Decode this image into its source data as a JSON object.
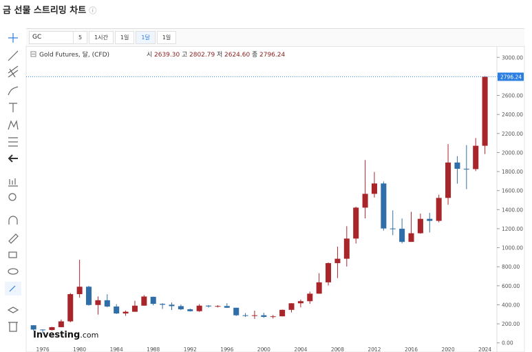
{
  "page_title": "금 선물 스트리밍 차트",
  "toolbar": {
    "symbol": "GC",
    "intervals": [
      "5",
      "1시간",
      "1일",
      "1달",
      "1일"
    ]
  },
  "legend": {
    "name": "Gold Futures, 달, (CFD)",
    "open_label": "시",
    "open": "2639.30",
    "high_label": "고",
    "high": "2802.79",
    "low_label": "저",
    "low": "2624.60",
    "close_label": "종",
    "close": "2796.24"
  },
  "logo": {
    "brand": "Investing",
    "domain": ".com"
  },
  "chart_data": {
    "type": "candlestick",
    "x": [
      1975,
      1976,
      1977,
      1978,
      1979,
      1980,
      1981,
      1982,
      1983,
      1984,
      1985,
      1986,
      1987,
      1988,
      1989,
      1990,
      1991,
      1992,
      1993,
      1994,
      1995,
      1996,
      1997,
      1998,
      1999,
      2000,
      2001,
      2002,
      2003,
      2004,
      2005,
      2006,
      2007,
      2008,
      2009,
      2010,
      2011,
      2012,
      2013,
      2014,
      2015,
      2016,
      2017,
      2018,
      2019,
      2020,
      2021,
      2022,
      2023,
      2024
    ],
    "open": [
      185,
      140,
      135,
      165,
      226,
      512,
      590,
      398,
      448,
      382,
      309,
      327,
      391,
      484,
      410,
      401,
      386,
      353,
      333,
      391,
      383,
      387,
      369,
      290,
      288,
      290,
      273,
      279,
      347,
      416,
      438,
      517,
      636,
      838,
      884,
      1096,
      1421,
      1566,
      1675,
      1202,
      1199,
      1061,
      1152,
      1303,
      1282,
      1523,
      1895,
      1829,
      1826,
      2071
    ],
    "high": [
      186,
      142,
      168,
      245,
      524,
      873,
      599,
      488,
      511,
      406,
      340,
      442,
      502,
      486,
      417,
      424,
      403,
      360,
      407,
      397,
      396,
      416,
      369,
      313,
      338,
      316,
      293,
      350,
      417,
      455,
      538,
      732,
      845,
      1011,
      1226,
      1431,
      1921,
      1796,
      1696,
      1392,
      1307,
      1377,
      1358,
      1366,
      1557,
      2089,
      1962,
      2078,
      2152,
      2802.79
    ],
    "low": [
      128,
      104,
      130,
      165,
      216,
      474,
      391,
      297,
      374,
      303,
      284,
      326,
      390,
      395,
      356,
      345,
      344,
      330,
      326,
      370,
      372,
      367,
      283,
      273,
      252,
      263,
      256,
      278,
      320,
      373,
      411,
      517,
      603,
      681,
      802,
      1044,
      1308,
      1527,
      1180,
      1131,
      1046,
      1061,
      1147,
      1160,
      1266,
      1451,
      1673,
      1615,
      1805,
      1984
    ],
    "close": [
      140,
      135,
      165,
      226,
      512,
      590,
      398,
      448,
      382,
      309,
      327,
      391,
      487,
      410,
      401,
      386,
      353,
      333,
      391,
      383,
      387,
      369,
      290,
      288,
      290,
      273,
      279,
      347,
      416,
      438,
      517,
      636,
      838,
      884,
      1096,
      1421,
      1566,
      1675,
      1202,
      1199,
      1061,
      1152,
      1303,
      1282,
      1523,
      1895,
      1829,
      1826,
      2071,
      2796.24
    ],
    "up_color": "#a8262a",
    "down_color": "#2f6ea8",
    "xlim": [
      1974.2,
      2025.3
    ],
    "xticks": [
      1976,
      1980,
      1984,
      1988,
      1992,
      1996,
      2000,
      2004,
      2008,
      2012,
      2016,
      2020,
      2024
    ],
    "ylim": [
      -96,
      3125
    ],
    "yticks": [
      {
        "value": 0,
        "label": "0.00"
      },
      {
        "value": 200,
        "label": "200.00"
      },
      {
        "value": 400,
        "label": "400.00"
      },
      {
        "value": 600,
        "label": "600.00"
      },
      {
        "value": 800,
        "label": "800.00"
      },
      {
        "value": 1000,
        "label": "1000.00"
      },
      {
        "value": 1200,
        "label": "1200.00"
      },
      {
        "value": 1400,
        "label": "1400.00"
      },
      {
        "value": 1600,
        "label": "1600.00"
      },
      {
        "value": 1800,
        "label": "1800.00"
      },
      {
        "value": 2000,
        "label": "2000.00"
      },
      {
        "value": 2200,
        "label": "2200.00"
      },
      {
        "value": 2400,
        "label": "2400.00"
      },
      {
        "value": 2600,
        "label": "2600.00"
      },
      {
        "value": 2800,
        "label": "2800.00"
      },
      {
        "value": 3000,
        "label": "3000.00"
      }
    ],
    "last_price": {
      "value": 2796.24,
      "label": "2796.24"
    }
  }
}
